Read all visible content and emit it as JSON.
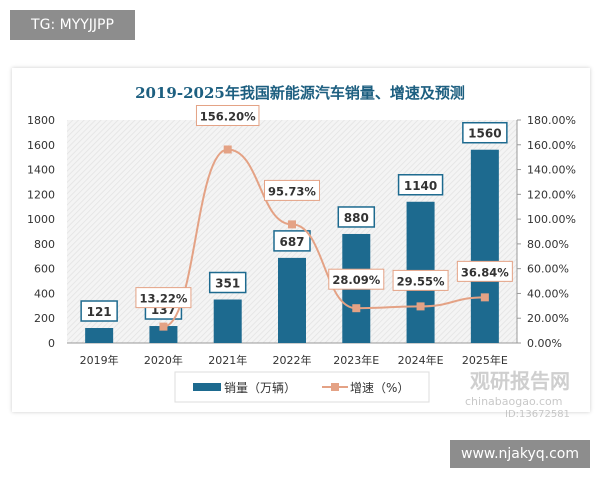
{
  "header_tag": "TG: MYYJJPP",
  "footer_site": "www.njakyq.com",
  "watermark": {
    "brand": "观研报告网",
    "url": "chinabaogao.com",
    "id": "ID:13672581"
  },
  "chart_data": {
    "type": "bar+line",
    "title": "2019-2025年我国新能源汽车销量、增速及预测",
    "categories": [
      "2019年",
      "2020年",
      "2021年",
      "2022年",
      "2023年E",
      "2024年E",
      "2025年E"
    ],
    "series": [
      {
        "name": "销量（万辆）",
        "type": "bar",
        "axis": "left",
        "values": [
          121,
          137,
          351,
          687,
          880,
          1140,
          1560
        ],
        "labels": [
          "121",
          "137",
          "351",
          "687",
          "880",
          "1140",
          "1560"
        ],
        "color": "#1d6a8f"
      },
      {
        "name": "增速（%）",
        "type": "line",
        "axis": "right",
        "values": [
          null,
          13.22,
          156.2,
          95.73,
          28.09,
          29.55,
          36.84
        ],
        "labels": [
          "",
          "13.22%",
          "156.20%",
          "95.73%",
          "28.09%",
          "29.55%",
          "36.84%"
        ],
        "color": "#e4a285"
      }
    ],
    "y_left": {
      "range": [
        0,
        1800
      ],
      "ticks": [
        "0",
        "200",
        "400",
        "600",
        "800",
        "1000",
        "1200",
        "1400",
        "1600",
        "1800"
      ]
    },
    "y_right": {
      "range": [
        0,
        180
      ],
      "ticks": [
        "0.00%",
        "20.00%",
        "40.00%",
        "60.00%",
        "80.00%",
        "100.00%",
        "120.00%",
        "140.00%",
        "160.00%",
        "180.00%"
      ]
    },
    "legend": "bottom"
  }
}
